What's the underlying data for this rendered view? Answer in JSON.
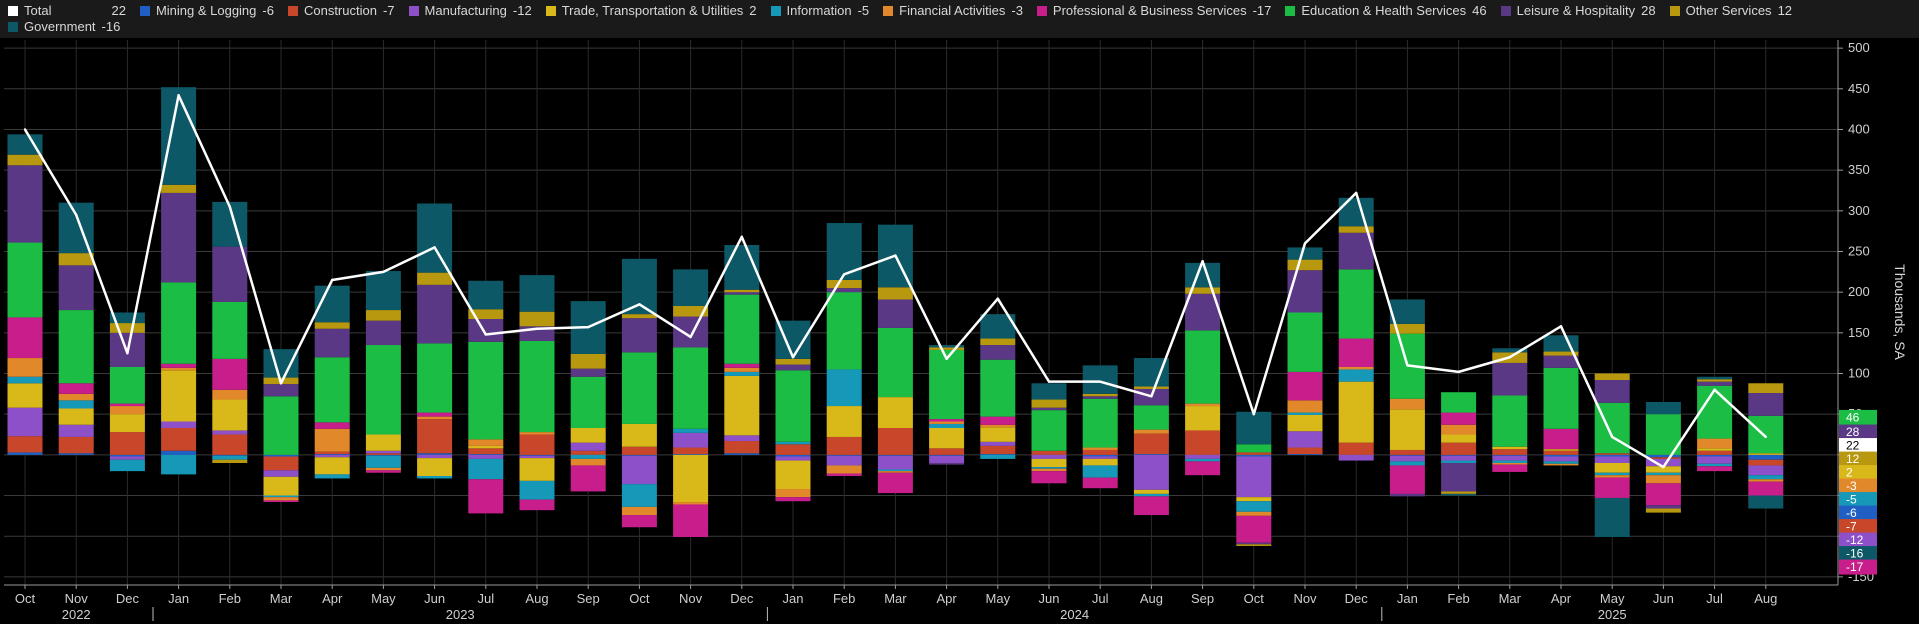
{
  "chart_data": {
    "type": "bar",
    "stacked": true,
    "ylabel": "Thousands, SA",
    "ylim": [
      -160,
      510
    ],
    "yticks": [
      -150,
      -100,
      -50,
      0,
      50,
      100,
      150,
      200,
      250,
      300,
      350,
      400,
      450,
      500
    ],
    "grid": true,
    "legend_position": "top",
    "categories": [
      "Oct",
      "Nov",
      "Dec",
      "Jan",
      "Feb",
      "Mar",
      "Apr",
      "May",
      "Jun",
      "Jul",
      "Aug",
      "Sep",
      "Oct",
      "Nov",
      "Dec",
      "Jan",
      "Feb",
      "Mar",
      "Apr",
      "May",
      "Jun",
      "Jul",
      "Aug",
      "Sep",
      "Oct",
      "Nov",
      "Dec",
      "Jan",
      "Feb",
      "Mar",
      "Apr",
      "May",
      "Jun",
      "Jul",
      "Aug"
    ],
    "year_labels": [
      {
        "label": "2022",
        "index": 1
      },
      {
        "label": "2023",
        "index": 8.5
      },
      {
        "label": "2024",
        "index": 20.5
      },
      {
        "label": "2025",
        "index": 31
      }
    ],
    "year_separators": [
      2.5,
      14.5,
      26.5
    ],
    "total": {
      "name": "Total",
      "color": "#ffffff",
      "legend_value": "22",
      "values": [
        400,
        295,
        125,
        442,
        305,
        88,
        215,
        225,
        255,
        148,
        155,
        157,
        185,
        145,
        268,
        120,
        222,
        245,
        118,
        192,
        90,
        90,
        72,
        238,
        50,
        260,
        322,
        110,
        102,
        120,
        158,
        22,
        -15,
        80,
        22
      ]
    },
    "series": [
      {
        "name": "Mining & Logging",
        "color": "#1f5fc4",
        "legend_value": "-6",
        "values": [
          3,
          2,
          -2,
          5,
          -1,
          -2,
          1,
          -1,
          2,
          1,
          -1,
          0,
          -1,
          1,
          2,
          -2,
          -1,
          -1,
          -1,
          1,
          0,
          -2,
          1,
          0,
          -2,
          1,
          0,
          -1,
          -1,
          -1,
          -2,
          -2,
          -3,
          -2,
          -6
        ]
      },
      {
        "name": "Construction",
        "color": "#c8472a",
        "legend_value": "-7",
        "values": [
          20,
          20,
          28,
          28,
          25,
          -17,
          3,
          2,
          42,
          7,
          25,
          5,
          10,
          8,
          15,
          13,
          22,
          33,
          8,
          10,
          5,
          6,
          25,
          30,
          3,
          8,
          15,
          6,
          15,
          7,
          5,
          2,
          -2,
          5,
          -7
        ]
      },
      {
        "name": "Manufacturing",
        "color": "#8e50c8",
        "legend_value": "-12",
        "values": [
          35,
          15,
          -4,
          8,
          5,
          -8,
          -3,
          3,
          -4,
          -5,
          -3,
          10,
          -35,
          18,
          7,
          -5,
          -12,
          -17,
          -9,
          5,
          -5,
          -3,
          -43,
          -5,
          -50,
          20,
          -7,
          -7,
          -6,
          -6,
          -6,
          -8,
          -9,
          -9,
          -12
        ]
      },
      {
        "name": "Trade, Transportation & Utilities",
        "color": "#d9b81a",
        "legend_value": "2",
        "values": [
          30,
          20,
          22,
          63,
          38,
          -23,
          -21,
          20,
          -22,
          3,
          -28,
          18,
          28,
          -58,
          73,
          -35,
          38,
          38,
          25,
          18,
          -10,
          -8,
          -5,
          30,
          -5,
          20,
          75,
          50,
          10,
          3,
          2,
          -12,
          -8,
          3,
          2
        ]
      },
      {
        "name": "Information",
        "color": "#1698b8",
        "legend_value": "-5",
        "values": [
          8,
          10,
          -14,
          -24,
          -5,
          -2,
          -5,
          -15,
          -3,
          -25,
          -23,
          -5,
          -28,
          5,
          5,
          3,
          45,
          -2,
          5,
          -5,
          -2,
          -15,
          -3,
          -3,
          -13,
          3,
          15,
          -5,
          -3,
          -3,
          -3,
          -3,
          -3,
          -3,
          -5
        ]
      },
      {
        "name": "Financial Activities",
        "color": "#e0882a",
        "legend_value": "-3",
        "values": [
          23,
          8,
          10,
          3,
          12,
          -4,
          28,
          -3,
          3,
          8,
          3,
          -8,
          -10,
          -3,
          5,
          -10,
          -10,
          -2,
          3,
          3,
          -3,
          3,
          5,
          3,
          -5,
          15,
          3,
          13,
          12,
          -2,
          -2,
          -3,
          -10,
          12,
          -3
        ]
      },
      {
        "name": "Professional & Business Services",
        "color": "#c81e8c",
        "legend_value": "-17",
        "values": [
          50,
          13,
          3,
          5,
          38,
          -2,
          8,
          -3,
          5,
          -42,
          -13,
          -32,
          -15,
          -40,
          5,
          -5,
          -3,
          -25,
          3,
          10,
          -15,
          -13,
          -23,
          -17,
          -33,
          35,
          35,
          -35,
          15,
          -9,
          25,
          -25,
          -27,
          -6,
          -17
        ]
      },
      {
        "name": "Education & Health Services",
        "color": "#1cbd45",
        "legend_value": "46",
        "values": [
          92,
          90,
          45,
          100,
          70,
          72,
          80,
          110,
          85,
          120,
          112,
          63,
          88,
          100,
          85,
          88,
          95,
          85,
          85,
          70,
          50,
          60,
          30,
          90,
          10,
          73,
          85,
          80,
          25,
          63,
          75,
          62,
          50,
          65,
          46
        ]
      },
      {
        "name": "Leisure & Hospitality",
        "color": "#5a3886",
        "legend_value": "28",
        "values": [
          95,
          55,
          42,
          110,
          68,
          15,
          35,
          30,
          72,
          28,
          18,
          10,
          42,
          38,
          3,
          7,
          5,
          35,
          -2,
          18,
          3,
          3,
          20,
          45,
          -2,
          52,
          45,
          -3,
          -35,
          40,
          15,
          28,
          -4,
          5,
          28
        ]
      },
      {
        "name": "Other Services",
        "color": "#b8980e",
        "legend_value": "12",
        "values": [
          13,
          15,
          12,
          10,
          -4,
          8,
          8,
          13,
          15,
          12,
          18,
          18,
          5,
          13,
          3,
          7,
          10,
          15,
          3,
          8,
          10,
          3,
          3,
          8,
          -2,
          13,
          8,
          12,
          -3,
          13,
          5,
          8,
          -5,
          3,
          12
        ]
      },
      {
        "name": "Government",
        "color": "#0c5866",
        "legend_value": "-16",
        "values": [
          25,
          62,
          13,
          120,
          55,
          35,
          45,
          48,
          85,
          35,
          45,
          65,
          68,
          45,
          55,
          47,
          70,
          77,
          3,
          30,
          20,
          35,
          35,
          30,
          40,
          15,
          35,
          30,
          -2,
          5,
          20,
          -48,
          15,
          3,
          -16
        ]
      }
    ]
  }
}
